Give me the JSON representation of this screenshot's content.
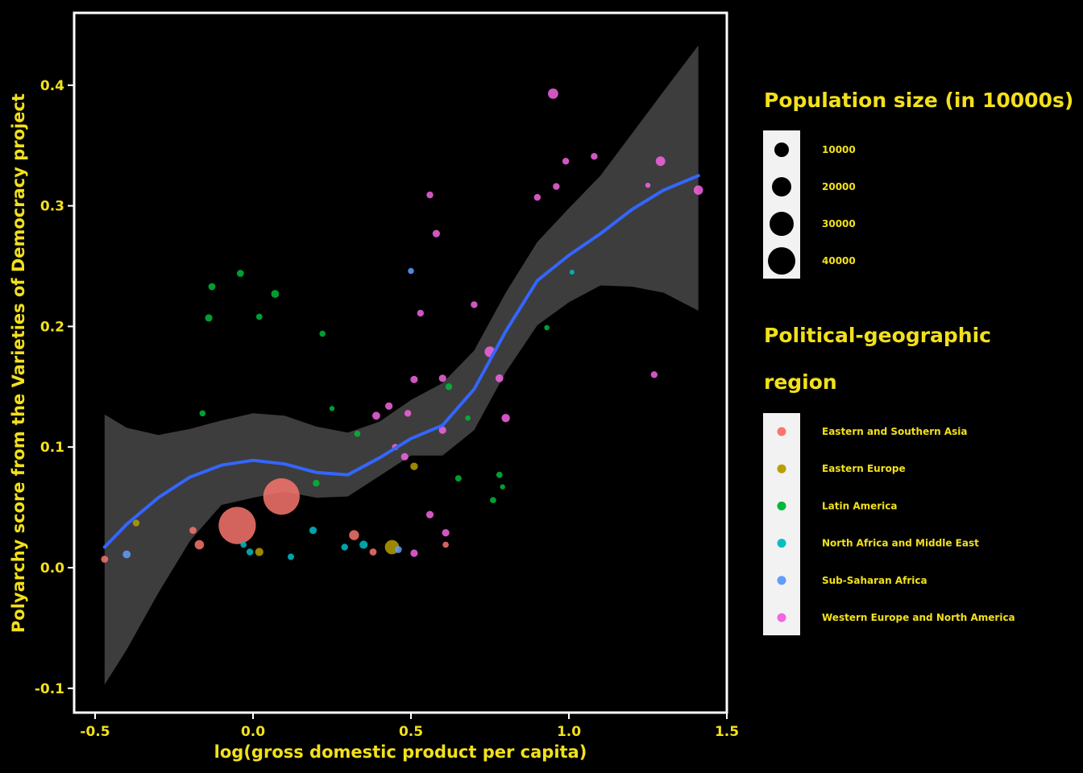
{
  "chart_data": {
    "type": "scatter",
    "xlabel": "log(gross domestic product per capita)",
    "ylabel": "Polyarchy score from the Varieties of Democracy project",
    "xlim": [
      -0.55,
      1.5
    ],
    "ylim": [
      -0.12,
      0.46
    ],
    "x_ticks": [
      "-0.5",
      "0.0",
      "0.5",
      "1.0",
      "1.5"
    ],
    "x_tick_values": [
      -0.5,
      0.0,
      0.5,
      1.0,
      1.5
    ],
    "y_ticks": [
      "-0.1",
      "0.0",
      "0.1",
      "0.2",
      "0.3",
      "0.4"
    ],
    "y_tick_values": [
      -0.1,
      0.0,
      0.1,
      0.2,
      0.3,
      0.4
    ],
    "grid": false,
    "background": "#000000",
    "panel_border_color": "#ffffff",
    "text_color": "#f2e01c",
    "smooth": {
      "method": "loess",
      "color": "#3366ff",
      "ribbon_color": "#3d3d3d",
      "x": [
        -0.47,
        -0.4,
        -0.3,
        -0.2,
        -0.1,
        0.0,
        0.1,
        0.2,
        0.3,
        0.4,
        0.5,
        0.6,
        0.7,
        0.8,
        0.9,
        1.0,
        1.1,
        1.2,
        1.3,
        1.41
      ],
      "fit": [
        0.017,
        0.036,
        0.058,
        0.075,
        0.085,
        0.089,
        0.086,
        0.079,
        0.077,
        0.091,
        0.107,
        0.118,
        0.148,
        0.196,
        0.238,
        0.259,
        0.277,
        0.297,
        0.313,
        0.325
      ],
      "lower": [
        -0.097,
        -0.068,
        -0.021,
        0.022,
        0.052,
        0.058,
        0.063,
        0.058,
        0.059,
        0.076,
        0.093,
        0.093,
        0.114,
        0.162,
        0.201,
        0.22,
        0.234,
        0.233,
        0.228,
        0.213
      ],
      "upper": [
        0.127,
        0.116,
        0.11,
        0.115,
        0.122,
        0.128,
        0.126,
        0.117,
        0.112,
        0.121,
        0.139,
        0.153,
        0.18,
        0.228,
        0.27,
        0.298,
        0.325,
        0.36,
        0.395,
        0.433
      ]
    },
    "legends": [
      {
        "title": "Population size (in 10000s)",
        "type": "size",
        "entries": [
          {
            "label": "10000",
            "value": 10000
          },
          {
            "label": "20000",
            "value": 20000
          },
          {
            "label": "30000",
            "value": 30000
          },
          {
            "label": "40000",
            "value": 40000
          }
        ]
      },
      {
        "title_lines": [
          "Political-geographic",
          "region"
        ],
        "type": "color",
        "entries": [
          {
            "label": "Eastern and Southern Asia",
            "color": "#f8766d"
          },
          {
            "label": "Eastern Europe",
            "color": "#b79f00"
          },
          {
            "label": "Latin America",
            "color": "#00ba38"
          },
          {
            "label": "North Africa and Middle East",
            "color": "#00bfc4"
          },
          {
            "label": "Sub-Saharan Africa",
            "color": "#619cff"
          },
          {
            "label": "Western Europe and North America",
            "color": "#f564e3"
          }
        ]
      }
    ],
    "series": [
      {
        "name": "Eastern and Southern Asia",
        "color": "#f8766d",
        "points": [
          {
            "x": -0.47,
            "y": 0.007,
            "size": 1500
          },
          {
            "x": -0.19,
            "y": 0.031,
            "size": 1500
          },
          {
            "x": -0.17,
            "y": 0.019,
            "size": 4000
          },
          {
            "x": -0.05,
            "y": 0.035,
            "size": 135000
          },
          {
            "x": 0.09,
            "y": 0.059,
            "size": 128000
          },
          {
            "x": 0.32,
            "y": 0.027,
            "size": 5000
          },
          {
            "x": 0.38,
            "y": 0.013,
            "size": 1500
          },
          {
            "x": 0.61,
            "y": 0.019,
            "size": 800
          }
        ]
      },
      {
        "name": "Eastern Europe",
        "color": "#b79f00",
        "points": [
          {
            "x": -0.37,
            "y": 0.037,
            "size": 1200
          },
          {
            "x": 0.02,
            "y": 0.013,
            "size": 2500
          },
          {
            "x": 0.44,
            "y": 0.017,
            "size": 14000
          },
          {
            "x": 0.51,
            "y": 0.084,
            "size": 2000
          }
        ]
      },
      {
        "name": "Latin America",
        "color": "#00ba38",
        "points": [
          {
            "x": -0.16,
            "y": 0.128,
            "size": 800
          },
          {
            "x": -0.14,
            "y": 0.207,
            "size": 1800
          },
          {
            "x": -0.13,
            "y": 0.233,
            "size": 1500
          },
          {
            "x": -0.04,
            "y": 0.244,
            "size": 1500
          },
          {
            "x": 0.02,
            "y": 0.208,
            "size": 900
          },
          {
            "x": 0.07,
            "y": 0.227,
            "size": 2200
          },
          {
            "x": 0.2,
            "y": 0.07,
            "size": 1200
          },
          {
            "x": 0.22,
            "y": 0.194,
            "size": 800
          },
          {
            "x": 0.25,
            "y": 0.132,
            "size": 300
          },
          {
            "x": 0.33,
            "y": 0.111,
            "size": 800
          },
          {
            "x": 0.62,
            "y": 0.15,
            "size": 1200
          },
          {
            "x": 0.65,
            "y": 0.074,
            "size": 1000
          },
          {
            "x": 0.68,
            "y": 0.124,
            "size": 400
          },
          {
            "x": 0.76,
            "y": 0.056,
            "size": 900
          },
          {
            "x": 0.78,
            "y": 0.077,
            "size": 900
          },
          {
            "x": 0.79,
            "y": 0.067,
            "size": 300
          },
          {
            "x": 0.93,
            "y": 0.199,
            "size": 400
          }
        ]
      },
      {
        "name": "North Africa and Middle East",
        "color": "#00bfc4",
        "points": [
          {
            "x": -0.03,
            "y": 0.019,
            "size": 800
          },
          {
            "x": -0.01,
            "y": 0.013,
            "size": 1200
          },
          {
            "x": 0.12,
            "y": 0.009,
            "size": 1000
          },
          {
            "x": 0.19,
            "y": 0.031,
            "size": 1800
          },
          {
            "x": 0.29,
            "y": 0.017,
            "size": 1200
          },
          {
            "x": 0.35,
            "y": 0.019,
            "size": 2500
          },
          {
            "x": 1.01,
            "y": 0.245,
            "size": 200
          }
        ]
      },
      {
        "name": "Sub-Saharan Africa",
        "color": "#619cff",
        "points": [
          {
            "x": -0.4,
            "y": 0.011,
            "size": 2200
          },
          {
            "x": 0.46,
            "y": 0.015,
            "size": 1500
          },
          {
            "x": 0.5,
            "y": 0.246,
            "size": 800
          }
        ]
      },
      {
        "name": "Western Europe and North America",
        "color": "#f564e3",
        "points": [
          {
            "x": 0.39,
            "y": 0.126,
            "size": 2200
          },
          {
            "x": 0.43,
            "y": 0.134,
            "size": 1800
          },
          {
            "x": 0.45,
            "y": 0.1,
            "size": 1000
          },
          {
            "x": 0.48,
            "y": 0.092,
            "size": 1800
          },
          {
            "x": 0.49,
            "y": 0.128,
            "size": 1200
          },
          {
            "x": 0.51,
            "y": 0.012,
            "size": 1800
          },
          {
            "x": 0.51,
            "y": 0.156,
            "size": 1800
          },
          {
            "x": 0.53,
            "y": 0.211,
            "size": 1200
          },
          {
            "x": 0.56,
            "y": 0.044,
            "size": 1800
          },
          {
            "x": 0.56,
            "y": 0.309,
            "size": 1200
          },
          {
            "x": 0.58,
            "y": 0.277,
            "size": 1800
          },
          {
            "x": 0.6,
            "y": 0.114,
            "size": 1800
          },
          {
            "x": 0.6,
            "y": 0.157,
            "size": 1800
          },
          {
            "x": 0.61,
            "y": 0.029,
            "size": 1800
          },
          {
            "x": 0.7,
            "y": 0.218,
            "size": 1200
          },
          {
            "x": 0.75,
            "y": 0.179,
            "size": 6000
          },
          {
            "x": 0.78,
            "y": 0.157,
            "size": 2200
          },
          {
            "x": 0.8,
            "y": 0.124,
            "size": 2800
          },
          {
            "x": 0.9,
            "y": 0.307,
            "size": 1200
          },
          {
            "x": 0.95,
            "y": 0.393,
            "size": 5500
          },
          {
            "x": 0.96,
            "y": 0.316,
            "size": 1200
          },
          {
            "x": 0.99,
            "y": 0.337,
            "size": 1200
          },
          {
            "x": 1.08,
            "y": 0.341,
            "size": 1200
          },
          {
            "x": 1.25,
            "y": 0.317,
            "size": 300
          },
          {
            "x": 1.27,
            "y": 0.16,
            "size": 1200
          },
          {
            "x": 1.29,
            "y": 0.337,
            "size": 4200
          },
          {
            "x": 1.41,
            "y": 0.313,
            "size": 4000
          }
        ]
      }
    ]
  }
}
